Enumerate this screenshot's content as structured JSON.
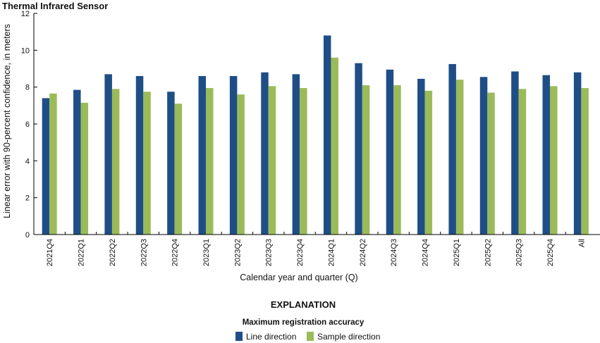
{
  "chart_data": {
    "type": "bar",
    "title": "Thermal Infrared Sensor",
    "xlabel": "Calendar year and quarter (Q)",
    "ylabel": "Linear error with 90-percent confidence, in meters",
    "ylim": [
      0,
      12
    ],
    "yticks": [
      0,
      2,
      4,
      6,
      8,
      10,
      12
    ],
    "grid": false,
    "categories": [
      "2021Q4",
      "2022Q1",
      "2022Q2",
      "2022Q3",
      "2022Q4",
      "2023Q1",
      "2023Q2",
      "2023Q3",
      "2023Q4",
      "2024Q1",
      "2024Q2",
      "2024Q3",
      "2024Q4",
      "2025Q1",
      "2025Q2",
      "2025Q3",
      "2025Q4",
      "All"
    ],
    "series": [
      {
        "name": "Line direction",
        "color": "#1f4e87",
        "values": [
          7.4,
          7.85,
          8.7,
          8.6,
          7.75,
          8.6,
          8.6,
          8.8,
          8.7,
          10.8,
          9.3,
          8.95,
          8.45,
          9.25,
          8.55,
          8.85,
          8.65,
          8.8
        ]
      },
      {
        "name": "Sample direction",
        "color": "#9bbb59",
        "values": [
          7.65,
          7.15,
          7.9,
          7.75,
          7.1,
          7.95,
          7.6,
          8.05,
          7.95,
          9.6,
          8.1,
          8.1,
          7.8,
          8.4,
          7.7,
          7.9,
          8.05,
          7.95
        ]
      }
    ],
    "legend": {
      "heading": "EXPLANATION",
      "subheading": "Maximum registration accuracy",
      "placement": "bottom-center"
    }
  }
}
